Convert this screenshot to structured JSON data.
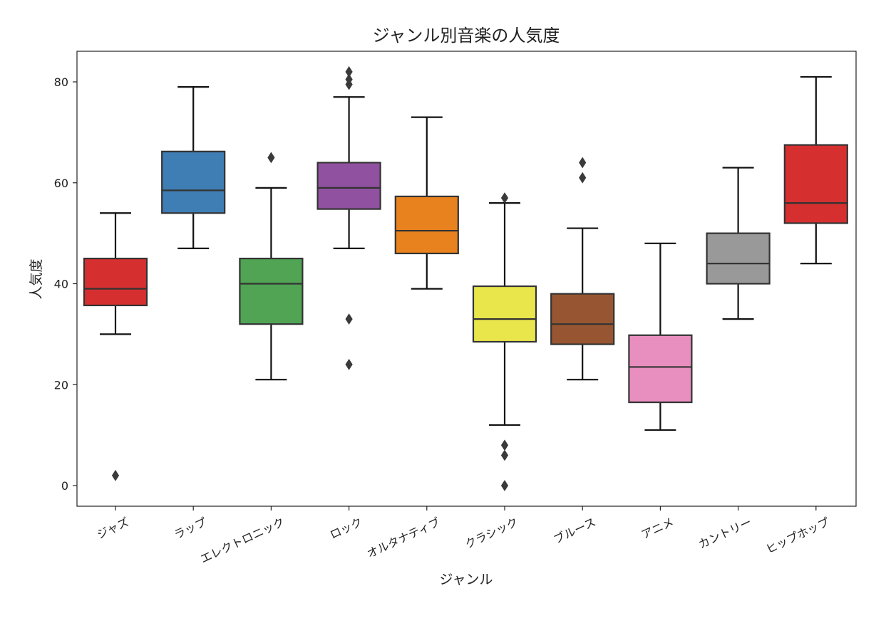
{
  "chart_data": {
    "type": "box",
    "title": "ジャンル別音楽の人気度",
    "xlabel": "ジャンル",
    "ylabel": "人気度",
    "ylim": [
      -4,
      86
    ],
    "yticks": [
      0,
      20,
      40,
      60,
      80
    ],
    "grid": false,
    "categories": [
      "ジャズ",
      "ラップ",
      "エレクトロニック",
      "ロック",
      "オルタナティブ",
      "クラシック",
      "ブルース",
      "アニメ",
      "カントリー",
      "ヒップホップ"
    ],
    "boxes": [
      {
        "category": "ジャズ",
        "whisker_low": 30,
        "q1": 35.7,
        "median": 39,
        "q3": 45,
        "whisker_high": 54,
        "outliers": [
          2
        ],
        "color": "#d62f30"
      },
      {
        "category": "ラップ",
        "whisker_low": 47,
        "q1": 54,
        "median": 58.5,
        "q3": 66.2,
        "whisker_high": 79,
        "outliers": [],
        "color": "#3f7eb4"
      },
      {
        "category": "エレクトロニック",
        "whisker_low": 21,
        "q1": 32,
        "median": 40,
        "q3": 45,
        "whisker_high": 59,
        "outliers": [
          65
        ],
        "color": "#50a453"
      },
      {
        "category": "ロック",
        "whisker_low": 47,
        "q1": 54.8,
        "median": 59,
        "q3": 64,
        "whisker_high": 77,
        "outliers": [
          24,
          33,
          79.5,
          80.5,
          82
        ],
        "color": "#9052a0"
      },
      {
        "category": "オルタナティブ",
        "whisker_low": 39,
        "q1": 46,
        "median": 50.5,
        "q3": 57.3,
        "whisker_high": 73,
        "outliers": [],
        "color": "#e8821e"
      },
      {
        "category": "クラシック",
        "whisker_low": 12,
        "q1": 28.5,
        "median": 33,
        "q3": 39.5,
        "whisker_high": 56,
        "outliers": [
          0,
          6,
          8,
          57
        ],
        "color": "#e9e64c"
      },
      {
        "category": "ブルース",
        "whisker_low": 21,
        "q1": 28,
        "median": 32,
        "q3": 38,
        "whisker_high": 51,
        "outliers": [
          61,
          64
        ],
        "color": "#975631"
      },
      {
        "category": "アニメ",
        "whisker_low": 11,
        "q1": 16.5,
        "median": 23.5,
        "q3": 29.8,
        "whisker_high": 48,
        "outliers": [],
        "color": "#e98fbf"
      },
      {
        "category": "カントリー",
        "whisker_low": 33,
        "q1": 40,
        "median": 44,
        "q3": 50,
        "whisker_high": 63,
        "outliers": [],
        "color": "#999999"
      },
      {
        "category": "ヒップホップ",
        "whisker_low": 44,
        "q1": 52,
        "median": 56,
        "q3": 67.5,
        "whisker_high": 81,
        "outliers": [],
        "color": "#d62f30"
      }
    ]
  }
}
